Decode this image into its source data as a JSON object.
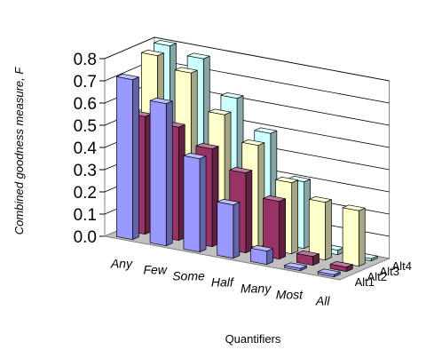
{
  "chart_data": {
    "type": "bar",
    "subtype": "3d-clustered-bar",
    "title": "",
    "xlabel": "Quantifiers",
    "ylabel": "Combined goodness measure, F",
    "ylim": [
      0,
      0.8
    ],
    "yticks": [
      "0.0",
      "0.1",
      "0.2",
      "0.3",
      "0.4",
      "0.5",
      "0.6",
      "0.7",
      "0.8"
    ],
    "categories": [
      "Any",
      "Few",
      "Some",
      "Half",
      "Many",
      "Most",
      "All"
    ],
    "grid": true,
    "series": [
      {
        "name": "Alt1",
        "color": "#9999ff",
        "values": [
          0.72,
          0.64,
          0.42,
          0.24,
          0.06,
          0.01,
          0.01
        ]
      },
      {
        "name": "Alt2",
        "color": "#993366",
        "values": [
          0.53,
          0.51,
          0.44,
          0.36,
          0.26,
          0.04,
          0.02
        ]
      },
      {
        "name": "Alt3",
        "color": "#ffffcc",
        "values": [
          0.78,
          0.73,
          0.57,
          0.46,
          0.32,
          0.26,
          0.25
        ]
      },
      {
        "name": "Alt4",
        "color": "#ccffff",
        "values": [
          0.8,
          0.77,
          0.62,
          0.49,
          0.3,
          0.02,
          0.01
        ]
      }
    ]
  }
}
